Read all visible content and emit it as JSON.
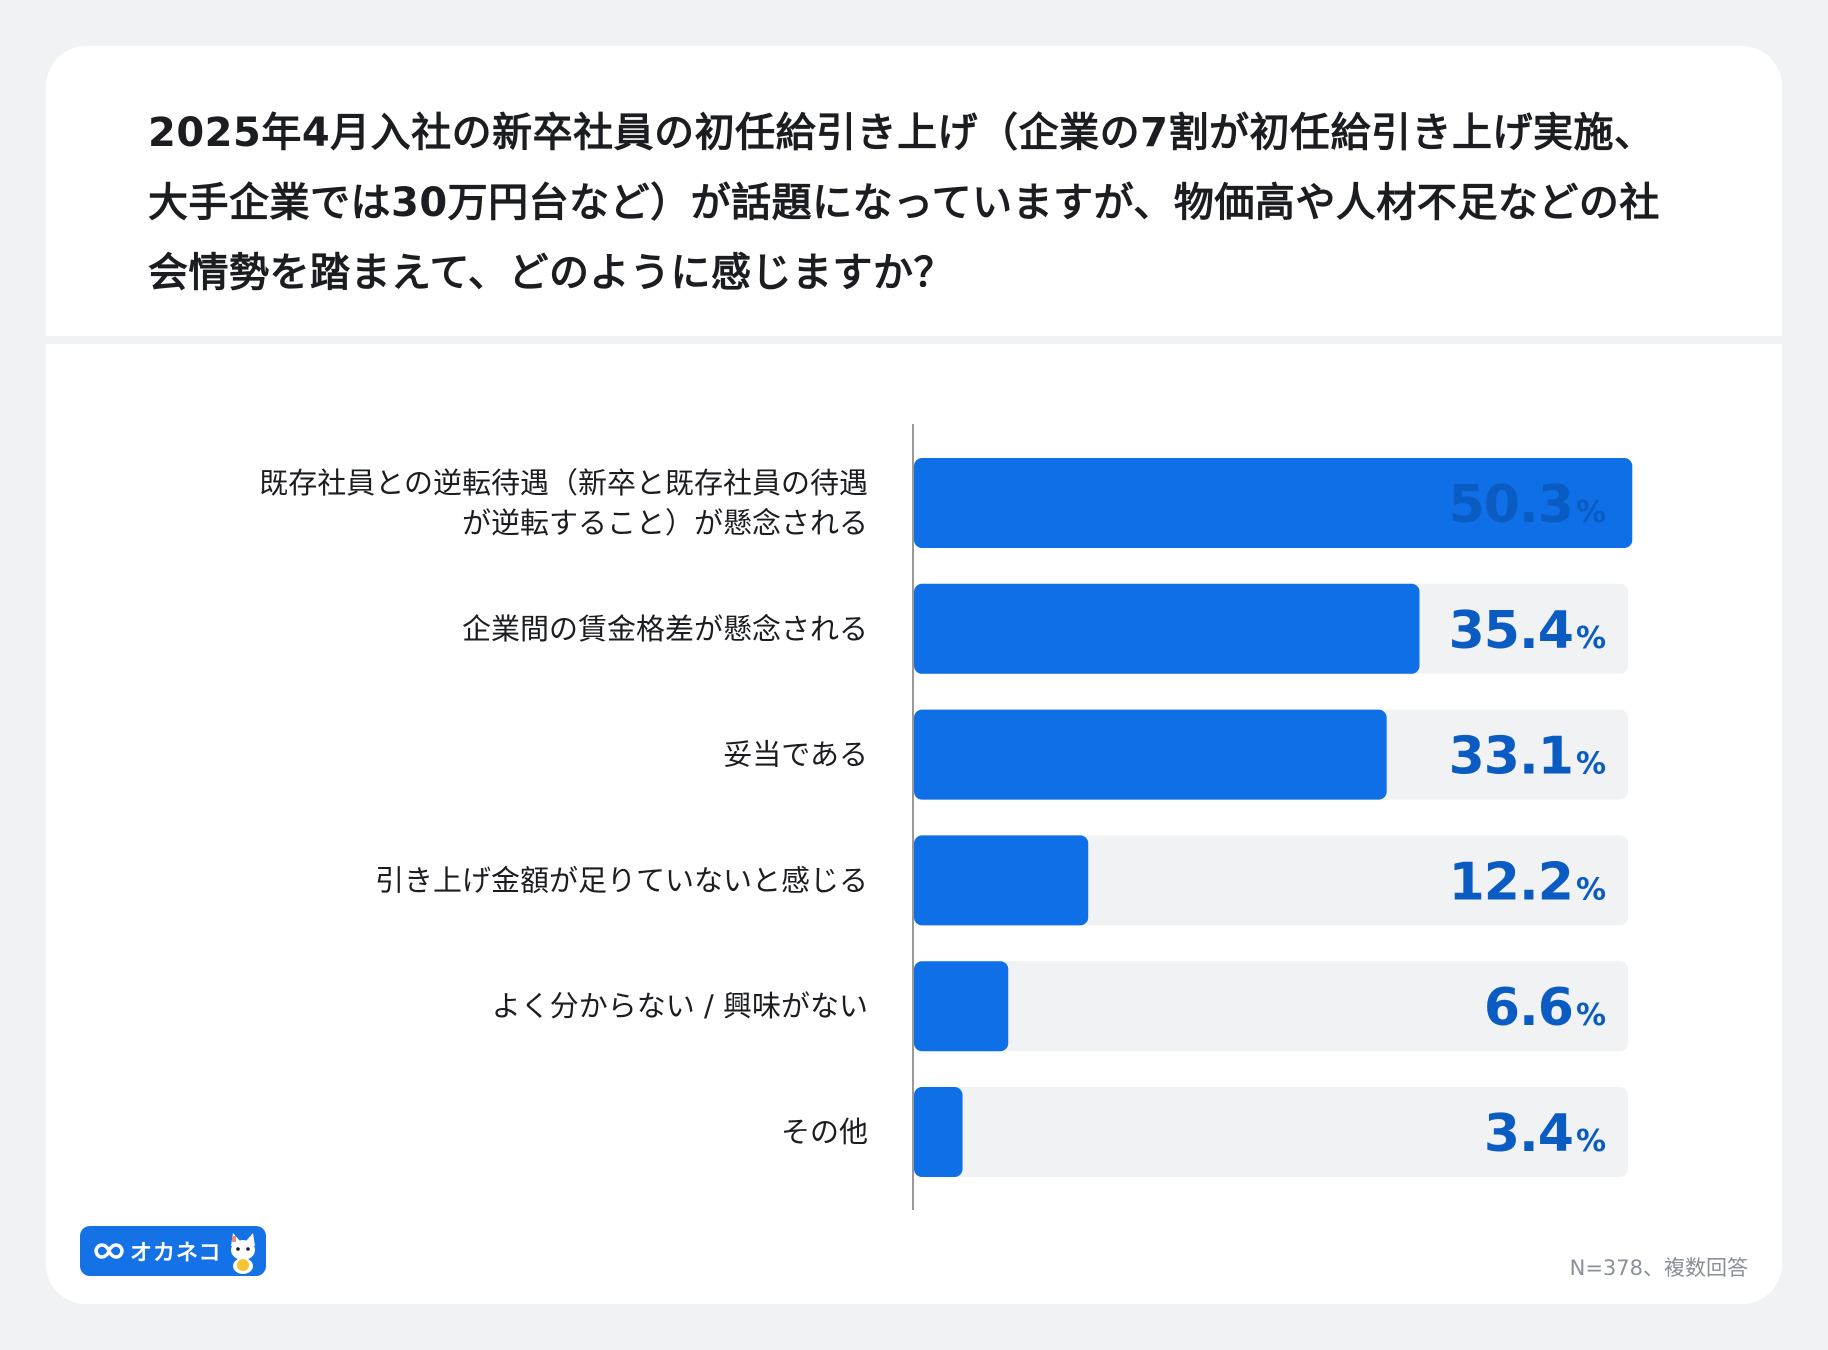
{
  "title": "2025年4月入社の新卒社員の初任給引き上げ（企業の7割が初任給引き上げ実施、大手企業では30万円台など）が話題になっていますが、物価高や人材不足などの社会情勢を踏まえて、どのように感じますか？",
  "footnote": "N=378、複数回答",
  "logo": {
    "text": "オカネコ",
    "mark_icon": "infinity-icon",
    "mascot_icon": "cat-mascot-icon"
  },
  "colors": {
    "bar": "#0f6fe6",
    "track": "#f1f2f4",
    "value": "#0a5cc2",
    "axis": "#999999"
  },
  "chart_data": {
    "type": "bar",
    "orientation": "horizontal",
    "title": "2025年4月入社の新卒社員の初任給引き上げ（企業の7割が初任給引き上げ実施、大手企業では30万円台など）が話題になっていますが、物価高や人材不足などの社会情勢を踏まえて、どのように感じますか？",
    "categories": [
      [
        "既存社員との逆転待遇（新卒と既存社員の待遇",
        "が逆転すること）が懸念される"
      ],
      [
        "企業間の賃金格差が懸念される"
      ],
      [
        "妥当である"
      ],
      [
        "引き上げ金額が足りていないと感じる"
      ],
      [
        "よく分からない / 興味がない"
      ],
      [
        "その他"
      ]
    ],
    "values": [
      50.3,
      35.4,
      33.1,
      12.2,
      6.6,
      3.4
    ],
    "value_labels": [
      "50.3",
      "35.4",
      "33.1",
      "12.2",
      "6.6",
      "3.4"
    ],
    "unit": "%",
    "xlim": [
      0,
      100
    ],
    "grid": false,
    "xlabel": "",
    "ylabel": ""
  }
}
